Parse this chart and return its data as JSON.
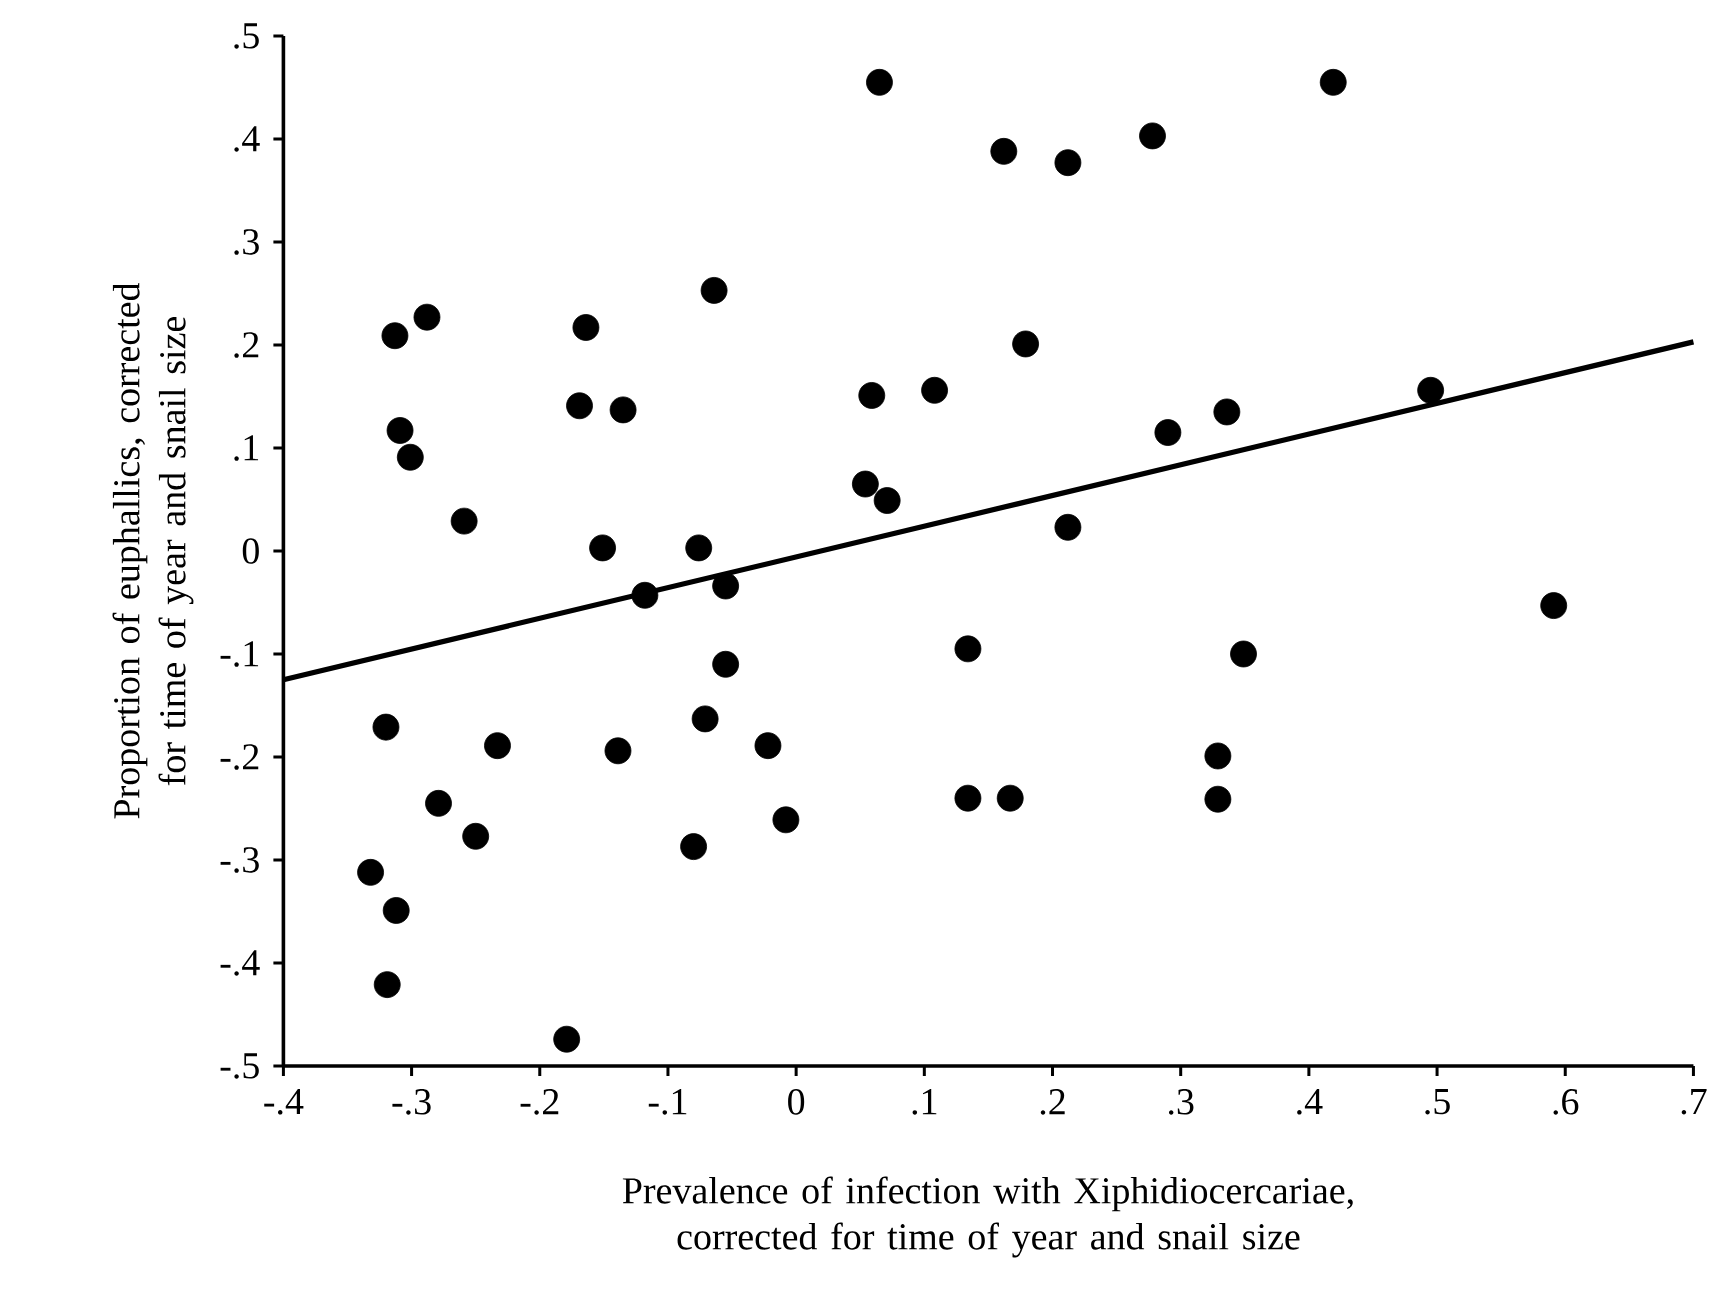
{
  "chart_data": {
    "type": "scatter",
    "xlabel": "Prevalence of infection with Xiphidiocercariae, corrected for time of year and snail size",
    "ylabel": "Proportion of euphallics, corrected for time of year and snail size",
    "xlim": [
      -0.4,
      0.7
    ],
    "ylim": [
      -0.5,
      0.5
    ],
    "xticks": [
      {
        "value": -0.4,
        "label": "-.4"
      },
      {
        "value": -0.3,
        "label": "-.3"
      },
      {
        "value": -0.2,
        "label": "-.2"
      },
      {
        "value": -0.1,
        "label": "-.1"
      },
      0,
      {
        "value": 0.1,
        "label": ".1"
      },
      {
        "value": 0.2,
        "label": ".2"
      },
      {
        "value": 0.3,
        "label": ".3"
      },
      {
        "value": 0.4,
        "label": ".4"
      },
      {
        "value": 0.5,
        "label": ".5"
      },
      {
        "value": 0.6,
        "label": ".6"
      },
      {
        "value": 0.7,
        "label": ".7"
      }
    ],
    "yticks": [
      {
        "value": -0.5,
        "label": "-.5"
      },
      {
        "value": -0.4,
        "label": "-.4"
      },
      {
        "value": -0.3,
        "label": "-.3"
      },
      {
        "value": -0.2,
        "label": "-.2"
      },
      {
        "value": -0.1,
        "label": "-.1"
      },
      0,
      {
        "value": 0.1,
        "label": ".1"
      },
      {
        "value": 0.2,
        "label": ".2"
      },
      {
        "value": 0.3,
        "label": ".3"
      },
      {
        "value": 0.4,
        "label": ".4"
      },
      {
        "value": 0.5,
        "label": ".5"
      }
    ],
    "series": [
      {
        "marker": "circle",
        "color": "#000000",
        "x": [
          -0.313,
          -0.288,
          -0.309,
          -0.301,
          -0.259,
          -0.164,
          -0.169,
          -0.135,
          -0.064,
          -0.151,
          -0.076,
          0.065,
          0.419,
          0.162,
          0.212,
          0.278,
          0.179,
          0.059,
          0.108,
          0.054,
          0.071,
          0.212,
          0.29,
          0.336,
          0.495,
          -0.118,
          -0.055,
          -0.055,
          -0.071,
          -0.022,
          -0.008,
          -0.139,
          -0.08,
          -0.233,
          -0.279,
          -0.25,
          -0.32,
          -0.332,
          -0.312,
          -0.319,
          -0.179,
          0.134,
          0.349,
          0.591,
          0.329,
          0.134,
          0.167,
          0.329
        ],
        "values": [
          0.209,
          0.227,
          0.117,
          0.091,
          0.029,
          0.217,
          0.141,
          0.137,
          0.253,
          0.003,
          0.003,
          0.455,
          0.455,
          0.388,
          0.377,
          0.403,
          0.201,
          0.151,
          0.156,
          0.065,
          0.049,
          0.023,
          0.115,
          0.135,
          0.156,
          -0.043,
          -0.034,
          -0.11,
          -0.163,
          -0.189,
          -0.261,
          -0.194,
          -0.287,
          -0.189,
          -0.245,
          -0.277,
          -0.171,
          -0.312,
          -0.349,
          -0.421,
          -0.474,
          -0.095,
          -0.1,
          -0.053,
          -0.199,
          -0.24,
          -0.24,
          -0.241
        ]
      },
      {
        "type": "line",
        "color": "#000000",
        "marker": "none",
        "x": [
          -0.4,
          0.7
        ],
        "values": [
          -0.125,
          0.203
        ]
      }
    ]
  }
}
